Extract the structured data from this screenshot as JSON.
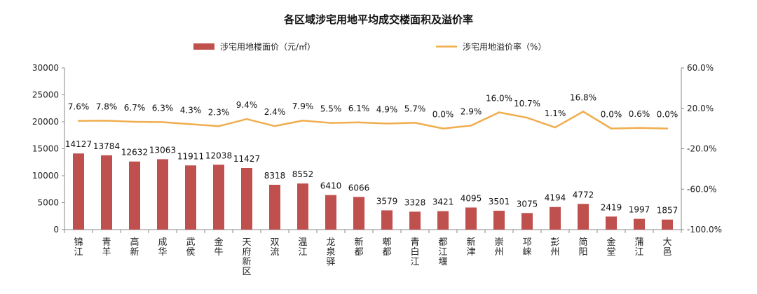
{
  "chart_data": {
    "type": "bar",
    "title": "各区域涉宅用地平均成交楼面积及溢价率",
    "legend_placement": "top",
    "categories": [
      "锦江",
      "青羊",
      "高新",
      "成华",
      "武侯",
      "金牛",
      "天府新区",
      "双流",
      "温江",
      "龙泉驿",
      "新都",
      "郫都",
      "青白江",
      "都江堰",
      "新津",
      "崇州",
      "邛崃",
      "彭州",
      "简阳",
      "金堂",
      "蒲江",
      "大邑"
    ],
    "series": [
      {
        "name": "涉宅用地楼面价（元/㎡）",
        "type": "bar",
        "axis": "left",
        "color": "#c0504d",
        "values": [
          14127,
          13784,
          12632,
          13063,
          11911,
          12038,
          11427,
          8318,
          8552,
          6410,
          6066,
          3579,
          3328,
          3421,
          4095,
          3501,
          3075,
          4194,
          4772,
          2419,
          1997,
          1857
        ],
        "labels": [
          "14127",
          "13784",
          "12632",
          "13063",
          "11911",
          "12038",
          "11427",
          "8318",
          "8552",
          "6410",
          "6066",
          "3579",
          "3328",
          "3421",
          "4095",
          "3501",
          "3075",
          "4194",
          "4772",
          "2419",
          "1997",
          "1857"
        ]
      },
      {
        "name": "涉宅用地溢价率（%）",
        "type": "line",
        "axis": "right",
        "color": "#f0ad4e",
        "values": [
          7.6,
          7.8,
          6.7,
          6.3,
          4.3,
          2.3,
          9.4,
          2.4,
          7.9,
          5.5,
          6.1,
          4.9,
          5.7,
          0.0,
          2.9,
          16.0,
          10.7,
          1.1,
          16.8,
          0.0,
          0.6,
          0.0
        ],
        "labels": [
          "7.6%",
          "7.8%",
          "6.7%",
          "6.3%",
          "4.3%",
          "2.3%",
          "9.4%",
          "2.4%",
          "7.9%",
          "5.5%",
          "6.1%",
          "4.9%",
          "5.7%",
          "0.0%",
          "2.9%",
          "16.0%",
          "10.7%",
          "1.1%",
          "16.8%",
          "0.0%",
          "0.6%",
          "0.0%"
        ]
      }
    ],
    "y_left": {
      "min": 0,
      "max": 30000,
      "ticks": [
        0,
        5000,
        10000,
        15000,
        20000,
        25000,
        30000
      ],
      "tick_labels": [
        "0",
        "5000",
        "10000",
        "15000",
        "20000",
        "25000",
        "30000"
      ]
    },
    "y_right": {
      "min": -100,
      "max": 60,
      "ticks": [
        -100,
        -60,
        -20,
        20,
        60
      ],
      "tick_labels": [
        "-100.0%",
        "-60.0%",
        "-20.0%",
        "20.0%",
        "60.0%"
      ]
    },
    "grid": false
  }
}
